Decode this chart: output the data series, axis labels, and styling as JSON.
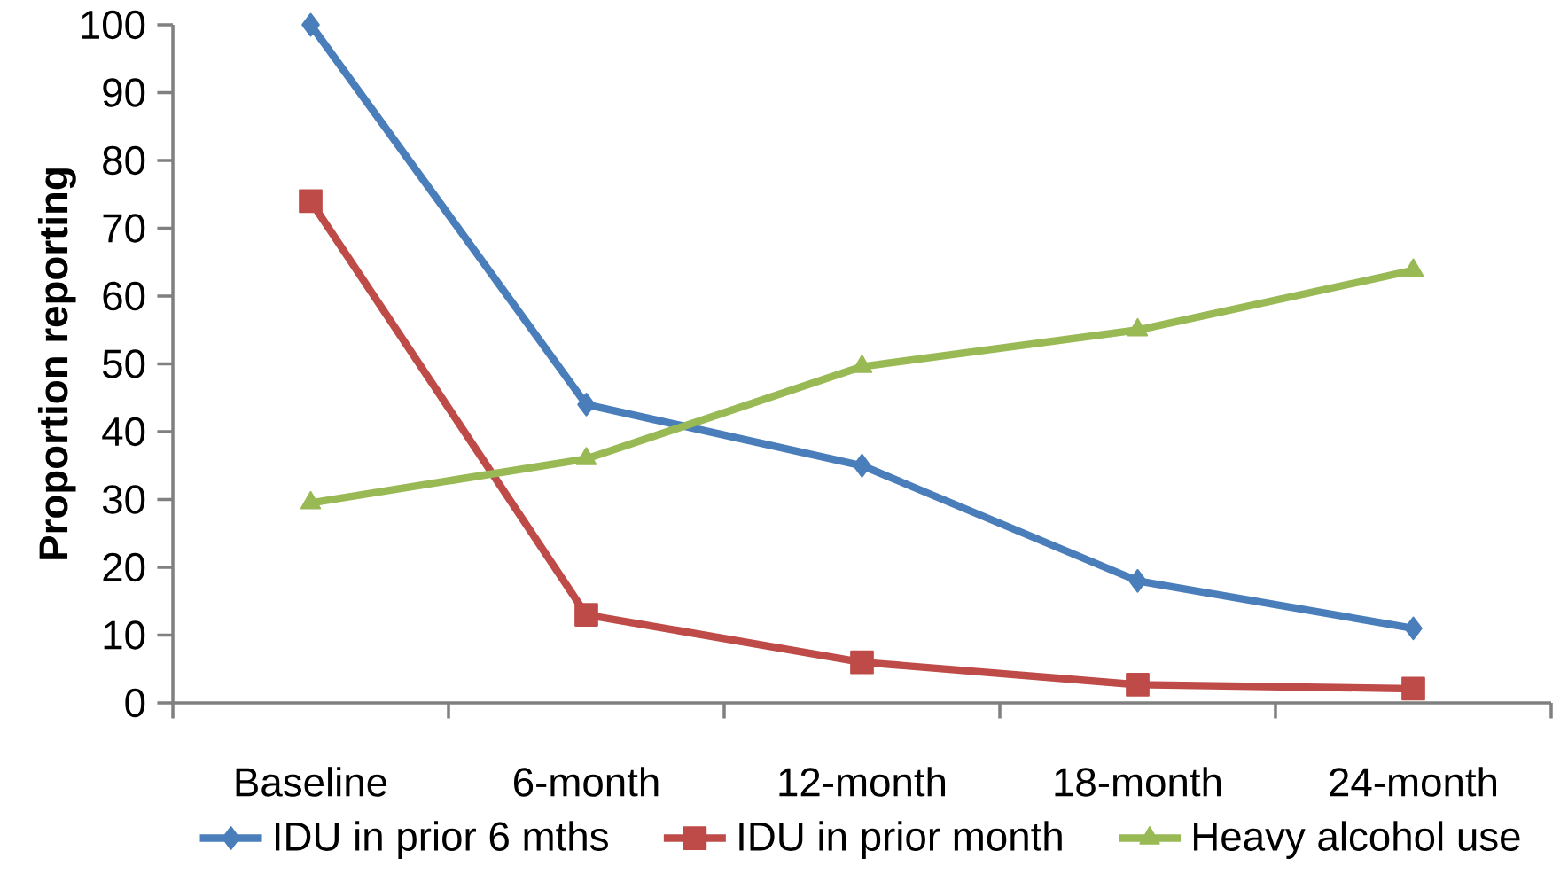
{
  "chart_data": {
    "type": "line",
    "ylabel": "Proportion reporting",
    "categories": [
      "Baseline",
      "6-month",
      "12-month",
      "18-month",
      "24-month"
    ],
    "series": [
      {
        "name": "IDU in prior 6 mths",
        "color": "#4a7ebb",
        "marker": "diamond",
        "values": [
          100,
          44,
          35,
          18,
          11
        ]
      },
      {
        "name": "IDU in prior month",
        "color": "#be4b48",
        "marker": "square",
        "values": [
          74,
          13,
          6,
          2.7,
          2.1
        ]
      },
      {
        "name": "Heavy alcohol use",
        "color": "#98b954",
        "marker": "triangle",
        "values": [
          29.5,
          36,
          49.6,
          55,
          63.8
        ]
      }
    ],
    "ylim": [
      0,
      100
    ],
    "yticks": [
      0,
      10,
      20,
      30,
      40,
      50,
      60,
      70,
      80,
      90,
      100
    ],
    "legend": "bottom"
  }
}
